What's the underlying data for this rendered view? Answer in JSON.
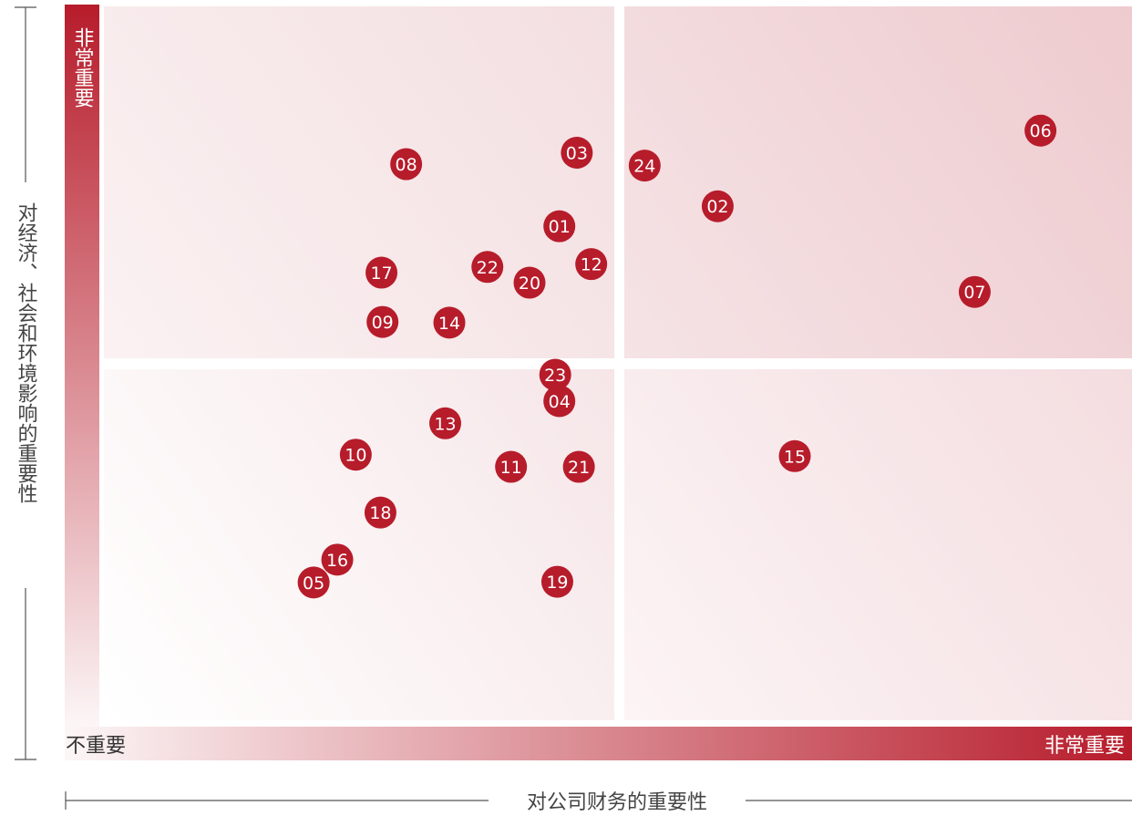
{
  "chart_data": {
    "type": "scatter",
    "xlabel": "对公司财务的重要性",
    "ylabel": "对经济、社会和环境影响的重要性",
    "x_scale_low": "不重要",
    "x_scale_high": "非常重要",
    "y_scale_high": "非常重要",
    "xlim": [
      0,
      100
    ],
    "ylim": [
      0,
      100
    ],
    "colors": {
      "marker": "#b71c2b",
      "quadrant": "#f3dadd",
      "axis_bar": "#b71c2b"
    },
    "points": [
      {
        "label": "01",
        "x": 44.3,
        "y": 69.2
      },
      {
        "label": "02",
        "x": 59.7,
        "y": 72.0
      },
      {
        "label": "03",
        "x": 46.0,
        "y": 79.5
      },
      {
        "label": "04",
        "x": 44.3,
        "y": 44.7
      },
      {
        "label": "05",
        "x": 20.4,
        "y": 19.3
      },
      {
        "label": "06",
        "x": 91.1,
        "y": 82.6
      },
      {
        "label": "07",
        "x": 84.7,
        "y": 60.0
      },
      {
        "label": "08",
        "x": 29.4,
        "y": 77.9
      },
      {
        "label": "09",
        "x": 27.1,
        "y": 55.8
      },
      {
        "label": "10",
        "x": 24.5,
        "y": 37.2
      },
      {
        "label": "11",
        "x": 39.6,
        "y": 35.5
      },
      {
        "label": "12",
        "x": 47.4,
        "y": 63.9
      },
      {
        "label": "13",
        "x": 33.2,
        "y": 41.6
      },
      {
        "label": "14",
        "x": 33.6,
        "y": 55.7
      },
      {
        "label": "15",
        "x": 67.2,
        "y": 37.0
      },
      {
        "label": "16",
        "x": 22.7,
        "y": 22.5
      },
      {
        "label": "17",
        "x": 27.0,
        "y": 62.7
      },
      {
        "label": "18",
        "x": 26.9,
        "y": 29.1
      },
      {
        "label": "19",
        "x": 44.1,
        "y": 19.4
      },
      {
        "label": "20",
        "x": 41.4,
        "y": 61.3
      },
      {
        "label": "21",
        "x": 46.2,
        "y": 35.5
      },
      {
        "label": "22",
        "x": 37.3,
        "y": 63.5
      },
      {
        "label": "23",
        "x": 43.9,
        "y": 48.4
      },
      {
        "label": "24",
        "x": 52.6,
        "y": 77.7
      }
    ]
  }
}
